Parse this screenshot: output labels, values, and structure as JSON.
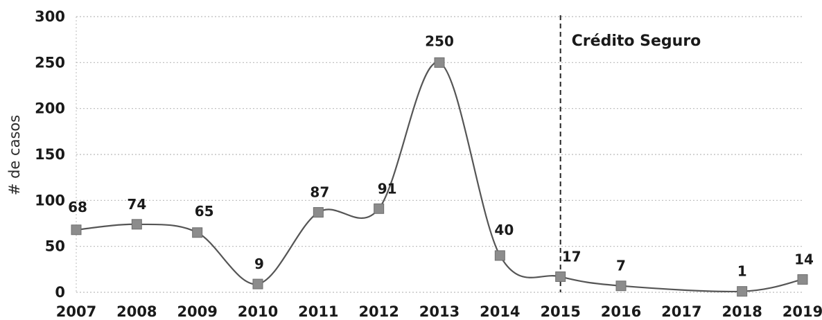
{
  "chart_data": {
    "type": "line",
    "title": "",
    "xlabel": "",
    "ylabel": "# de casos",
    "x": [
      "2007",
      "2008",
      "2009",
      "2010",
      "2011",
      "2012",
      "2013",
      "2014",
      "2015",
      "2016",
      "2017",
      "2018",
      "2019"
    ],
    "series": [
      {
        "values": [
          68,
          74,
          65,
          9,
          87,
          91,
          250,
          40,
          17,
          7,
          null,
          1,
          14
        ]
      }
    ],
    "data_labels": [
      "68",
      "74",
      "65",
      "9",
      "87",
      "91",
      "250",
      "40",
      "17",
      "7",
      "",
      "1",
      "14"
    ],
    "ylim": [
      0,
      300
    ],
    "yticks": [
      0,
      50,
      100,
      150,
      200,
      250,
      300
    ],
    "grid": "horizontal-dotted",
    "annotation": {
      "text": "Crédito Seguro",
      "at_x": "2015",
      "line_style": "dashed"
    },
    "colors": {
      "line": "#555555",
      "marker": "#8c8c8c",
      "grid": "#bbbbbb",
      "annotation_line": "#222222"
    }
  }
}
